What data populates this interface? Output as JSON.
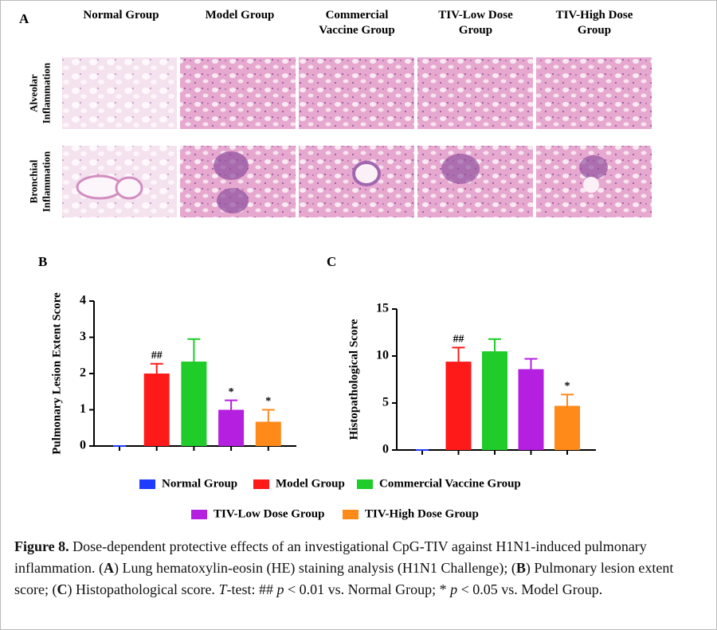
{
  "panel_a": {
    "label": "A",
    "columns": [
      "Normal Group",
      "Model Group",
      "Commercial Vaccine Group",
      "TIV-Low Dose Group",
      "TIV-High Dose Group"
    ],
    "rows": [
      "Alveolar Inflammation",
      "Bronchial Inflammation"
    ]
  },
  "chart_data": [
    {
      "type": "bar",
      "panel_label": "B",
      "ylabel": "Pulmonary Lesion Extent Score",
      "values": [
        0,
        2.0,
        2.33,
        1.0,
        0.67
      ],
      "errors": [
        0,
        0.27,
        0.62,
        0.26,
        0.33
      ],
      "colors": [
        "#1f3bff",
        "#ff1a1a",
        "#1fcc2a",
        "#b41fe0",
        "#ff8a1a"
      ],
      "annotations": [
        null,
        "##",
        null,
        "*",
        "*"
      ],
      "ylim": [
        0,
        4
      ],
      "yticks": [
        0,
        1,
        2,
        3,
        4
      ]
    },
    {
      "type": "bar",
      "panel_label": "C",
      "ylabel": "Histopathological Score",
      "values": [
        0,
        9.4,
        10.5,
        8.6,
        4.7
      ],
      "errors": [
        0,
        1.5,
        1.3,
        1.1,
        1.2
      ],
      "colors": [
        "#1f3bff",
        "#ff1a1a",
        "#1fcc2a",
        "#b41fe0",
        "#ff8a1a"
      ],
      "annotations": [
        null,
        "##",
        null,
        null,
        "*"
      ],
      "ylim": [
        0,
        15
      ],
      "yticks": [
        0,
        5,
        10,
        15
      ]
    }
  ],
  "legend": {
    "entries": [
      "Normal Group",
      "Model Group",
      "Commercial Vaccine Group",
      "TIV-Low Dose Group",
      "TIV-High Dose Group"
    ],
    "colors": [
      "#1f3bff",
      "#ff1a1a",
      "#1fcc2a",
      "#b41fe0",
      "#ff8a1a"
    ]
  },
  "caption": [
    {
      "text": "Figure 8.",
      "style": "bold"
    },
    {
      "text": " Dose-dependent protective effects of an investigational CpG-TIV against H1N1-induced pulmonary inflammation. (",
      "style": "normal"
    },
    {
      "text": "A",
      "style": "bold"
    },
    {
      "text": ") Lung hematoxylin-eosin (HE) staining analysis (H1N1 Challenge); (",
      "style": "normal"
    },
    {
      "text": "B",
      "style": "bold"
    },
    {
      "text": ") Pulmonary lesion extent score; (",
      "style": "normal"
    },
    {
      "text": "C",
      "style": "bold"
    },
    {
      "text": ") Histopathological score. ",
      "style": "normal"
    },
    {
      "text": "T",
      "style": "italic"
    },
    {
      "text": "-test: ## ",
      "style": "normal"
    },
    {
      "text": "p",
      "style": "italic"
    },
    {
      "text": " < 0.01 vs. Normal Group; * ",
      "style": "normal"
    },
    {
      "text": "p",
      "style": "italic"
    },
    {
      "text": " < 0.05 vs. Model Group.",
      "style": "normal"
    }
  ]
}
